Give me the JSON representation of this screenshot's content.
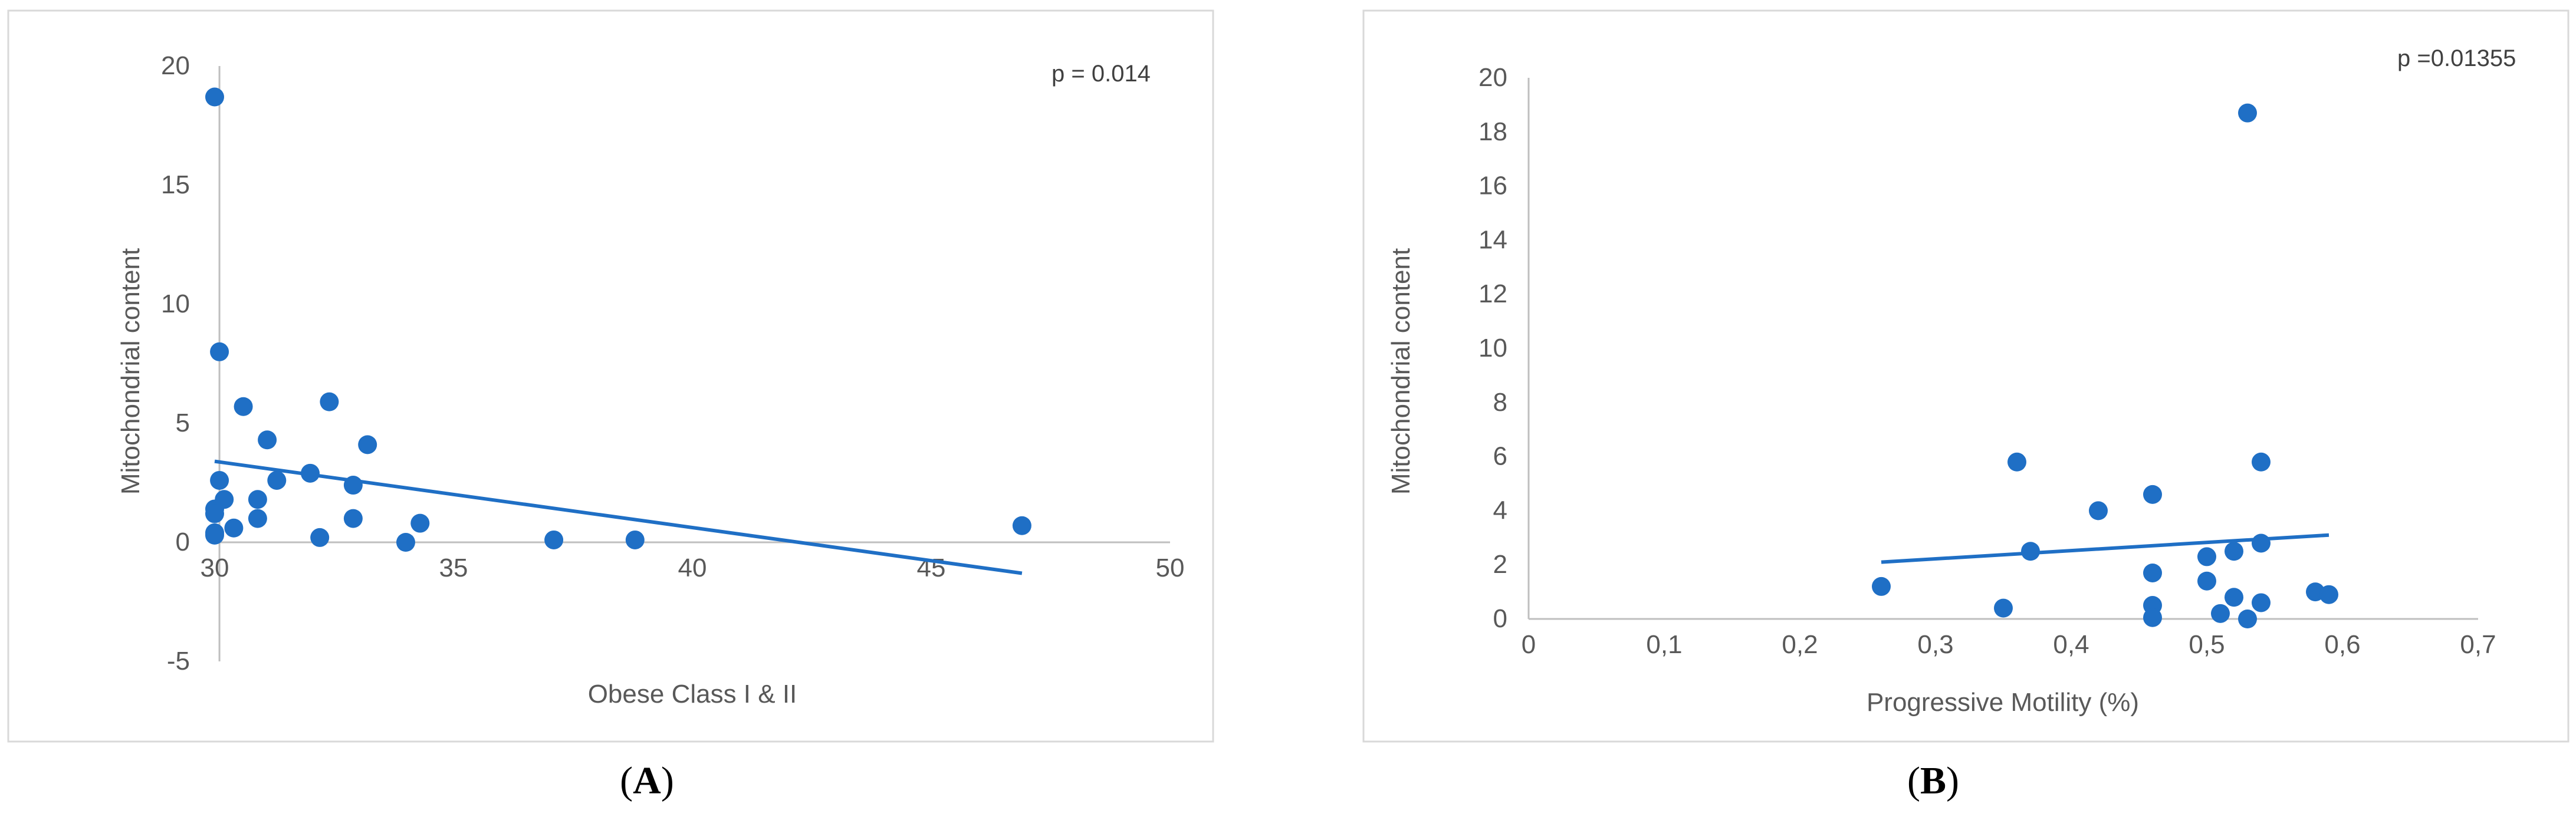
{
  "colors": {
    "marker": "#1f6fc5",
    "trend": "#1f6fc5"
  },
  "chart_data": [
    {
      "type": "scatter",
      "panel_label": "A",
      "xlabel": "Obese Class I & II",
      "ylabel": "Mitochondrial content",
      "annotation": "p = 0.014",
      "xlim": [
        30,
        50
      ],
      "ylim": [
        -5,
        20
      ],
      "x_ticks": [
        30,
        35,
        40,
        45,
        50
      ],
      "x_tick_labels": [
        "30",
        "35",
        "40",
        "45",
        "50"
      ],
      "y_ticks": [
        -5,
        0,
        5,
        10,
        15,
        20
      ],
      "y_tick_labels": [
        "-5",
        "0",
        "5",
        "10",
        "15",
        "20"
      ],
      "x_axis_at_y": 0,
      "y_axis_at_x": 30.1,
      "points": [
        {
          "x": 30.0,
          "y": 18.7
        },
        {
          "x": 30.1,
          "y": 8.0
        },
        {
          "x": 30.6,
          "y": 5.7
        },
        {
          "x": 32.4,
          "y": 5.9
        },
        {
          "x": 31.1,
          "y": 4.3
        },
        {
          "x": 33.2,
          "y": 4.1
        },
        {
          "x": 32.0,
          "y": 2.9
        },
        {
          "x": 31.3,
          "y": 2.6
        },
        {
          "x": 32.9,
          "y": 2.4
        },
        {
          "x": 30.1,
          "y": 2.6
        },
        {
          "x": 30.2,
          "y": 1.8
        },
        {
          "x": 30.9,
          "y": 1.8
        },
        {
          "x": 30.0,
          "y": 1.4
        },
        {
          "x": 30.0,
          "y": 1.2
        },
        {
          "x": 30.9,
          "y": 1.0
        },
        {
          "x": 32.9,
          "y": 1.0
        },
        {
          "x": 34.3,
          "y": 0.8
        },
        {
          "x": 30.4,
          "y": 0.6
        },
        {
          "x": 30.0,
          "y": 0.4
        },
        {
          "x": 30.0,
          "y": 0.3
        },
        {
          "x": 32.2,
          "y": 0.2
        },
        {
          "x": 34.0,
          "y": 0.0
        },
        {
          "x": 37.1,
          "y": 0.1
        },
        {
          "x": 38.8,
          "y": 0.1
        },
        {
          "x": 46.9,
          "y": 0.7
        }
      ],
      "trendline": [
        {
          "x": 30.0,
          "y": 3.4
        },
        {
          "x": 46.9,
          "y": -1.3
        }
      ]
    },
    {
      "type": "scatter",
      "panel_label": "B",
      "xlabel": "Progressive Motility (%)",
      "ylabel": "Mitochondrial content",
      "annotation": "p =0.01355",
      "xlim": [
        0,
        0.7
      ],
      "ylim": [
        0,
        20
      ],
      "x_ticks": [
        0,
        0.1,
        0.2,
        0.3,
        0.4,
        0.5,
        0.6,
        0.7
      ],
      "x_tick_labels": [
        "0",
        "0,1",
        "0,2",
        "0,3",
        "0,4",
        "0,5",
        "0,6",
        "0,7"
      ],
      "y_ticks": [
        0,
        2,
        4,
        6,
        8,
        10,
        12,
        14,
        16,
        18,
        20
      ],
      "y_tick_labels": [
        "0",
        "2",
        "4",
        "6",
        "8",
        "10",
        "12",
        "14",
        "16",
        "18",
        "20"
      ],
      "x_axis_at_y": 0,
      "y_axis_at_x": 0,
      "points": [
        {
          "x": 0.26,
          "y": 1.2
        },
        {
          "x": 0.35,
          "y": 0.4
        },
        {
          "x": 0.36,
          "y": 5.8
        },
        {
          "x": 0.37,
          "y": 2.5
        },
        {
          "x": 0.42,
          "y": 4.0
        },
        {
          "x": 0.46,
          "y": 4.6
        },
        {
          "x": 0.46,
          "y": 1.7
        },
        {
          "x": 0.46,
          "y": 0.5
        },
        {
          "x": 0.46,
          "y": 0.05
        },
        {
          "x": 0.5,
          "y": 2.3
        },
        {
          "x": 0.5,
          "y": 1.4
        },
        {
          "x": 0.51,
          "y": 0.2
        },
        {
          "x": 0.52,
          "y": 2.5
        },
        {
          "x": 0.52,
          "y": 0.8
        },
        {
          "x": 0.53,
          "y": 18.7
        },
        {
          "x": 0.53,
          "y": 0.0
        },
        {
          "x": 0.54,
          "y": 5.8
        },
        {
          "x": 0.54,
          "y": 2.8
        },
        {
          "x": 0.54,
          "y": 0.6
        },
        {
          "x": 0.58,
          "y": 1.0
        },
        {
          "x": 0.59,
          "y": 0.9
        }
      ],
      "trendline": [
        {
          "x": 0.26,
          "y": 2.1
        },
        {
          "x": 0.59,
          "y": 3.1
        }
      ]
    }
  ]
}
